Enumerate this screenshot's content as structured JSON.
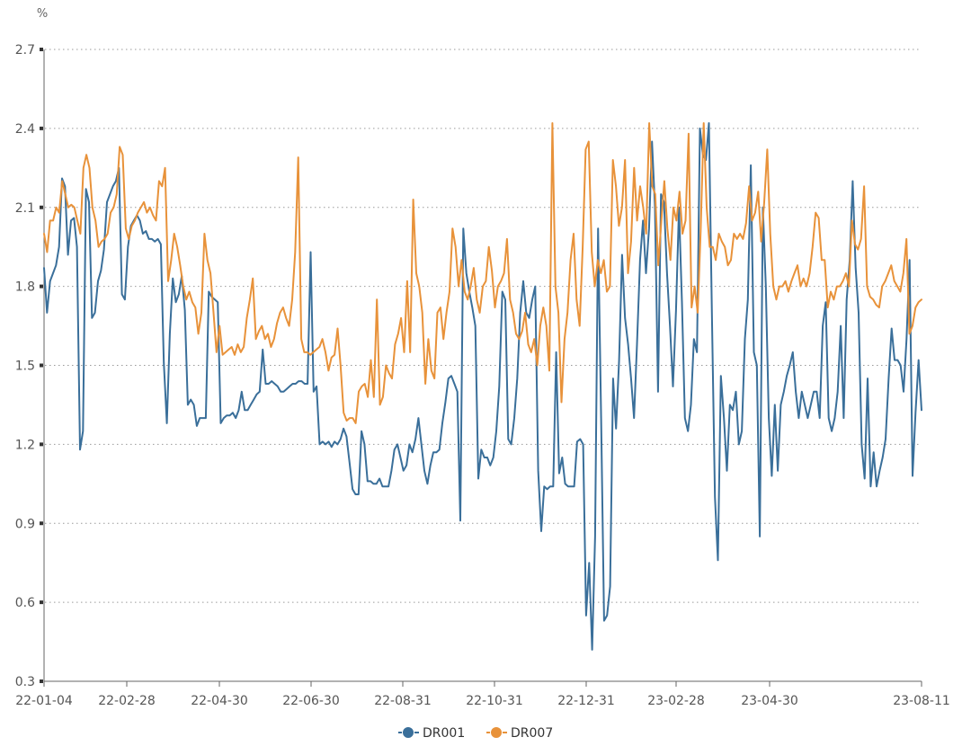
{
  "chart_data": {
    "type": "line",
    "title": "",
    "unit_label": "%",
    "xlabel": "",
    "ylabel": "",
    "ylim": [
      0.3,
      2.7
    ],
    "y_ticks": [
      "0.3",
      "0.6",
      "0.9",
      "1.2",
      "1.5",
      "1.8",
      "2.1",
      "2.4",
      "2.7"
    ],
    "x_ticks": [
      "22-01-04",
      "22-02-28",
      "22-04-30",
      "22-06-30",
      "22-08-31",
      "22-10-31",
      "22-12-31",
      "23-02-28",
      "23-04-30",
      "23-08-11"
    ],
    "grid": "horizontal dotted",
    "legend_position": "bottom-center",
    "series": [
      {
        "name": "DR001",
        "color": "#3a6f9a",
        "values": [
          1.87,
          1.7,
          1.82,
          1.85,
          1.88,
          1.95,
          2.21,
          2.18,
          1.92,
          2.05,
          2.06,
          1.95,
          1.18,
          1.25,
          2.17,
          2.12,
          1.68,
          1.7,
          1.82,
          1.86,
          1.94,
          2.12,
          2.15,
          2.18,
          2.2,
          2.25,
          1.77,
          1.75,
          1.95,
          2.03,
          2.05,
          2.07,
          2.05,
          2.0,
          2.01,
          1.98,
          1.98,
          1.97,
          1.98,
          1.96,
          1.51,
          1.28,
          1.62,
          1.83,
          1.74,
          1.77,
          1.84,
          1.71,
          1.35,
          1.37,
          1.35,
          1.27,
          1.3,
          1.3,
          1.3,
          1.78,
          1.76,
          1.75,
          1.74,
          1.28,
          1.3,
          1.31,
          1.31,
          1.32,
          1.3,
          1.33,
          1.4,
          1.33,
          1.33,
          1.35,
          1.37,
          1.39,
          1.4,
          1.56,
          1.43,
          1.43,
          1.44,
          1.43,
          1.42,
          1.4,
          1.4,
          1.41,
          1.42,
          1.43,
          1.43,
          1.44,
          1.44,
          1.43,
          1.43,
          1.93,
          1.4,
          1.42,
          1.2,
          1.21,
          1.2,
          1.21,
          1.19,
          1.21,
          1.2,
          1.22,
          1.26,
          1.23,
          1.13,
          1.03,
          1.01,
          1.01,
          1.25,
          1.2,
          1.06,
          1.06,
          1.05,
          1.05,
          1.07,
          1.04,
          1.04,
          1.04,
          1.1,
          1.18,
          1.2,
          1.15,
          1.1,
          1.12,
          1.2,
          1.17,
          1.22,
          1.3,
          1.2,
          1.1,
          1.05,
          1.12,
          1.17,
          1.17,
          1.18,
          1.28,
          1.36,
          1.45,
          1.46,
          1.43,
          1.4,
          0.91,
          2.02,
          1.85,
          1.78,
          1.72,
          1.65,
          1.07,
          1.18,
          1.15,
          1.15,
          1.12,
          1.15,
          1.25,
          1.42,
          1.78,
          1.75,
          1.22,
          1.2,
          1.3,
          1.45,
          1.7,
          1.82,
          1.7,
          1.68,
          1.75,
          1.8,
          1.1,
          0.87,
          1.04,
          1.03,
          1.04,
          1.04,
          1.55,
          1.09,
          1.15,
          1.05,
          1.04,
          1.04,
          1.04,
          1.21,
          1.22,
          1.2,
          0.55,
          0.75,
          0.42,
          0.85,
          2.02,
          1.3,
          0.53,
          0.55,
          0.66,
          1.45,
          1.26,
          1.52,
          1.92,
          1.68,
          1.58,
          1.45,
          1.3,
          1.58,
          1.9,
          2.05,
          1.85,
          2.02,
          2.35,
          2.1,
          1.4,
          2.15,
          2.12,
          1.85,
          1.65,
          1.42,
          1.71,
          2.1,
          1.74,
          1.3,
          1.25,
          1.35,
          1.6,
          1.55,
          2.4,
          2.3,
          2.28,
          2.42,
          1.7,
          1.0,
          0.76,
          1.46,
          1.3,
          1.1,
          1.35,
          1.33,
          1.4,
          1.2,
          1.25,
          1.6,
          1.75,
          2.26,
          1.55,
          1.5,
          0.85,
          2.1,
          1.8,
          1.3,
          1.08,
          1.35,
          1.1,
          1.35,
          1.4,
          1.46,
          1.5,
          1.55,
          1.4,
          1.3,
          1.4,
          1.35,
          1.3,
          1.35,
          1.4,
          1.4,
          1.3,
          1.65,
          1.74,
          1.3,
          1.25,
          1.3,
          1.4,
          1.65,
          1.3,
          1.75,
          1.9,
          2.2,
          1.87,
          1.7,
          1.2,
          1.07,
          1.45,
          1.04,
          1.17,
          1.04,
          1.1,
          1.15,
          1.22,
          1.45,
          1.64,
          1.52,
          1.52,
          1.5,
          1.4,
          1.6,
          1.9,
          1.08,
          1.32,
          1.52,
          1.33
        ]
      },
      {
        "name": "DR007",
        "color": "#e8923a",
        "values": [
          2.0,
          1.93,
          2.05,
          2.05,
          2.1,
          2.08,
          2.2,
          2.15,
          2.1,
          2.11,
          2.1,
          2.05,
          2.0,
          2.25,
          2.3,
          2.25,
          2.1,
          2.05,
          1.95,
          1.97,
          1.98,
          2.0,
          2.08,
          2.1,
          2.15,
          2.33,
          2.3,
          2.02,
          1.98,
          2.03,
          2.05,
          2.08,
          2.1,
          2.12,
          2.08,
          2.1,
          2.07,
          2.05,
          2.2,
          2.18,
          2.25,
          1.82,
          1.9,
          2.0,
          1.95,
          1.88,
          1.8,
          1.75,
          1.78,
          1.74,
          1.72,
          1.62,
          1.7,
          2.0,
          1.9,
          1.85,
          1.7,
          1.55,
          1.65,
          1.54,
          1.55,
          1.56,
          1.57,
          1.54,
          1.58,
          1.55,
          1.57,
          1.68,
          1.75,
          1.83,
          1.6,
          1.63,
          1.65,
          1.6,
          1.62,
          1.57,
          1.6,
          1.66,
          1.7,
          1.72,
          1.68,
          1.65,
          1.75,
          1.93,
          2.29,
          1.6,
          1.55,
          1.55,
          1.54,
          1.55,
          1.56,
          1.57,
          1.6,
          1.55,
          1.48,
          1.53,
          1.54,
          1.64,
          1.5,
          1.32,
          1.29,
          1.3,
          1.3,
          1.28,
          1.4,
          1.42,
          1.43,
          1.38,
          1.52,
          1.38,
          1.75,
          1.35,
          1.38,
          1.5,
          1.47,
          1.45,
          1.58,
          1.62,
          1.68,
          1.55,
          1.82,
          1.55,
          2.13,
          1.85,
          1.8,
          1.7,
          1.43,
          1.6,
          1.48,
          1.45,
          1.7,
          1.72,
          1.6,
          1.7,
          1.78,
          2.02,
          1.95,
          1.8,
          1.9,
          1.78,
          1.75,
          1.8,
          1.87,
          1.75,
          1.7,
          1.8,
          1.82,
          1.95,
          1.86,
          1.72,
          1.8,
          1.82,
          1.85,
          1.98,
          1.75,
          1.7,
          1.62,
          1.6,
          1.63,
          1.7,
          1.58,
          1.55,
          1.6,
          1.5,
          1.65,
          1.72,
          1.65,
          1.48,
          2.42,
          1.8,
          1.7,
          1.36,
          1.6,
          1.7,
          1.9,
          2.0,
          1.75,
          1.65,
          1.95,
          2.32,
          2.35,
          1.93,
          1.8,
          1.9,
          1.85,
          1.9,
          1.78,
          1.8,
          2.28,
          2.18,
          2.03,
          2.1,
          2.28,
          1.85,
          1.97,
          2.25,
          2.05,
          2.18,
          2.1,
          2.0,
          2.42,
          2.18,
          2.15,
          1.88,
          2.05,
          2.2,
          2.02,
          1.9,
          2.1,
          2.05,
          2.16,
          2.0,
          2.05,
          2.38,
          1.72,
          1.8,
          1.7,
          2.01,
          2.42,
          2.1,
          1.95,
          1.95,
          1.9,
          2.0,
          1.97,
          1.95,
          1.88,
          1.9,
          2.0,
          1.98,
          2.0,
          1.98,
          2.04,
          2.18,
          2.05,
          2.08,
          2.16,
          1.97,
          2.12,
          2.32,
          2.0,
          1.8,
          1.75,
          1.8,
          1.8,
          1.82,
          1.78,
          1.82,
          1.85,
          1.88,
          1.8,
          1.83,
          1.8,
          1.85,
          1.95,
          2.08,
          2.06,
          1.9,
          1.9,
          1.72,
          1.78,
          1.75,
          1.8,
          1.8,
          1.82,
          1.85,
          1.8,
          2.05,
          1.96,
          1.94,
          1.98,
          2.18,
          1.8,
          1.76,
          1.75,
          1.73,
          1.72,
          1.8,
          1.82,
          1.85,
          1.88,
          1.82,
          1.8,
          1.78,
          1.85,
          1.98,
          1.62,
          1.65,
          1.72,
          1.74,
          1.75
        ]
      }
    ]
  }
}
